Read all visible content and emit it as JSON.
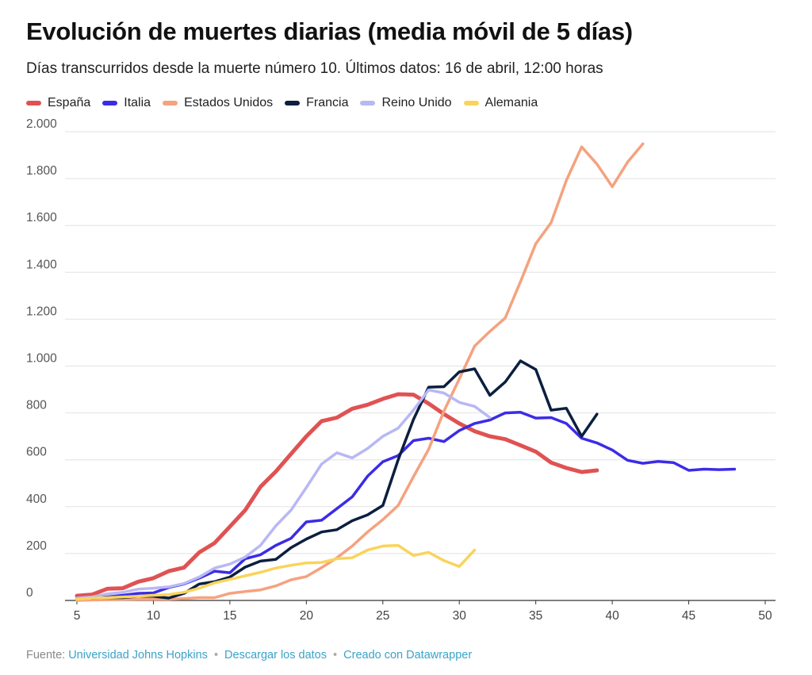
{
  "header": {
    "title": "Evolución de muertes diarias (media móvil de 5 días)",
    "subtitle": "Días transcurridos desde la muerte número 10. Últimos datos: 16 de abril, 12:00 horas"
  },
  "footer": {
    "source_label": "Fuente:",
    "source_link": "Universidad Johns Hopkins",
    "separator": "•",
    "download_link": "Descargar los datos",
    "created_link": "Creado con Datawrapper"
  },
  "chart_data": {
    "type": "line",
    "xlim": [
      5,
      50
    ],
    "ylim": [
      0,
      2000
    ],
    "x_ticks": [
      5,
      10,
      15,
      20,
      25,
      30,
      35,
      40,
      45,
      50
    ],
    "x_tick_labels": [
      "5",
      "10",
      "15",
      "20",
      "25",
      "30",
      "35",
      "40",
      "45",
      "50"
    ],
    "y_ticks": [
      0,
      200,
      400,
      600,
      800,
      1000,
      1200,
      1400,
      1600,
      1800,
      2000
    ],
    "y_tick_labels": [
      "0",
      "200",
      "400",
      "600",
      "800",
      "1.000",
      "1.200",
      "1.400",
      "1.600",
      "1.800",
      "2.000"
    ],
    "grid": true,
    "legend": "top-left",
    "series": [
      {
        "name": "España",
        "color": "#e05252",
        "x": [
          5,
          6,
          7,
          8,
          9,
          10,
          11,
          12,
          13,
          14,
          15,
          16,
          17,
          18,
          19,
          20,
          21,
          22,
          23,
          24,
          25,
          26,
          27,
          28,
          29,
          30,
          31,
          32,
          33,
          34,
          35,
          36,
          37,
          38,
          39
        ],
        "y": [
          20,
          25,
          50,
          52,
          80,
          95,
          125,
          140,
          205,
          245,
          315,
          385,
          485,
          550,
          625,
          700,
          765,
          780,
          818,
          835,
          860,
          880,
          878,
          840,
          795,
          755,
          722,
          700,
          688,
          662,
          635,
          588,
          565,
          548,
          555
        ]
      },
      {
        "name": "Italia",
        "color": "#3b2ce6",
        "x": [
          5,
          6,
          7,
          8,
          9,
          10,
          11,
          12,
          13,
          14,
          15,
          16,
          17,
          18,
          19,
          20,
          21,
          22,
          23,
          24,
          25,
          26,
          27,
          28,
          29,
          30,
          31,
          32,
          33,
          34,
          35,
          36,
          37,
          38,
          39,
          40,
          41,
          42,
          43,
          44,
          45,
          46,
          47,
          48
        ],
        "y": [
          5,
          10,
          15,
          22,
          30,
          32,
          55,
          70,
          95,
          125,
          118,
          178,
          195,
          235,
          265,
          335,
          342,
          392,
          442,
          530,
          592,
          618,
          682,
          692,
          678,
          725,
          755,
          770,
          800,
          803,
          778,
          780,
          755,
          692,
          672,
          642,
          598,
          585,
          593,
          588,
          555,
          560,
          558,
          560
        ]
      },
      {
        "name": "Estados Unidos",
        "color": "#f5a27f",
        "x": [
          5,
          6,
          7,
          8,
          9,
          10,
          11,
          12,
          13,
          14,
          15,
          16,
          17,
          18,
          19,
          20,
          21,
          22,
          23,
          24,
          25,
          26,
          27,
          28,
          29,
          30,
          31,
          32,
          33,
          34,
          35,
          36,
          37,
          38,
          39,
          40,
          41,
          42
        ],
        "y": [
          0,
          2,
          3,
          4,
          5,
          5,
          5,
          8,
          12,
          12,
          30,
          38,
          45,
          62,
          88,
          102,
          140,
          182,
          232,
          292,
          345,
          405,
          528,
          645,
          808,
          945,
          1085,
          1148,
          1205,
          1360,
          1522,
          1612,
          1792,
          1935,
          1862,
          1765,
          1870,
          1948
        ]
      },
      {
        "name": "Francia",
        "color": "#0b1f3f",
        "x": [
          5,
          6,
          7,
          8,
          9,
          10,
          11,
          12,
          13,
          14,
          15,
          16,
          17,
          18,
          19,
          20,
          21,
          22,
          23,
          24,
          25,
          26,
          27,
          28,
          29,
          30,
          31,
          32,
          33,
          34,
          35,
          36,
          37,
          38,
          39
        ],
        "y": [
          10,
          10,
          12,
          12,
          18,
          18,
          10,
          30,
          70,
          80,
          100,
          142,
          168,
          175,
          225,
          262,
          292,
          302,
          340,
          365,
          405,
          600,
          772,
          910,
          912,
          975,
          988,
          875,
          932,
          1022,
          985,
          812,
          820,
          700,
          795
        ]
      },
      {
        "name": "Reino Unido",
        "color": "#b8b8f5",
        "x": [
          5,
          6,
          7,
          8,
          9,
          10,
          11,
          12,
          13,
          14,
          15,
          16,
          17,
          18,
          19,
          20,
          21,
          22,
          23,
          24,
          25,
          26,
          27,
          28,
          29,
          30,
          31,
          32
        ],
        "y": [
          10,
          15,
          28,
          35,
          48,
          52,
          58,
          72,
          100,
          138,
          155,
          185,
          235,
          318,
          385,
          482,
          582,
          630,
          608,
          648,
          700,
          735,
          812,
          898,
          885,
          845,
          828,
          780
        ]
      },
      {
        "name": "Alemania",
        "color": "#f9d45c",
        "x": [
          5,
          6,
          7,
          8,
          9,
          10,
          11,
          12,
          13,
          14,
          15,
          16,
          17,
          18,
          19,
          20,
          21,
          22,
          23,
          24,
          25,
          26,
          27,
          28,
          29,
          30,
          31
        ],
        "y": [
          5,
          10,
          12,
          15,
          18,
          22,
          25,
          35,
          52,
          75,
          90,
          105,
          120,
          138,
          150,
          160,
          162,
          178,
          182,
          215,
          232,
          235,
          192,
          205,
          170,
          145,
          215
        ]
      }
    ]
  }
}
